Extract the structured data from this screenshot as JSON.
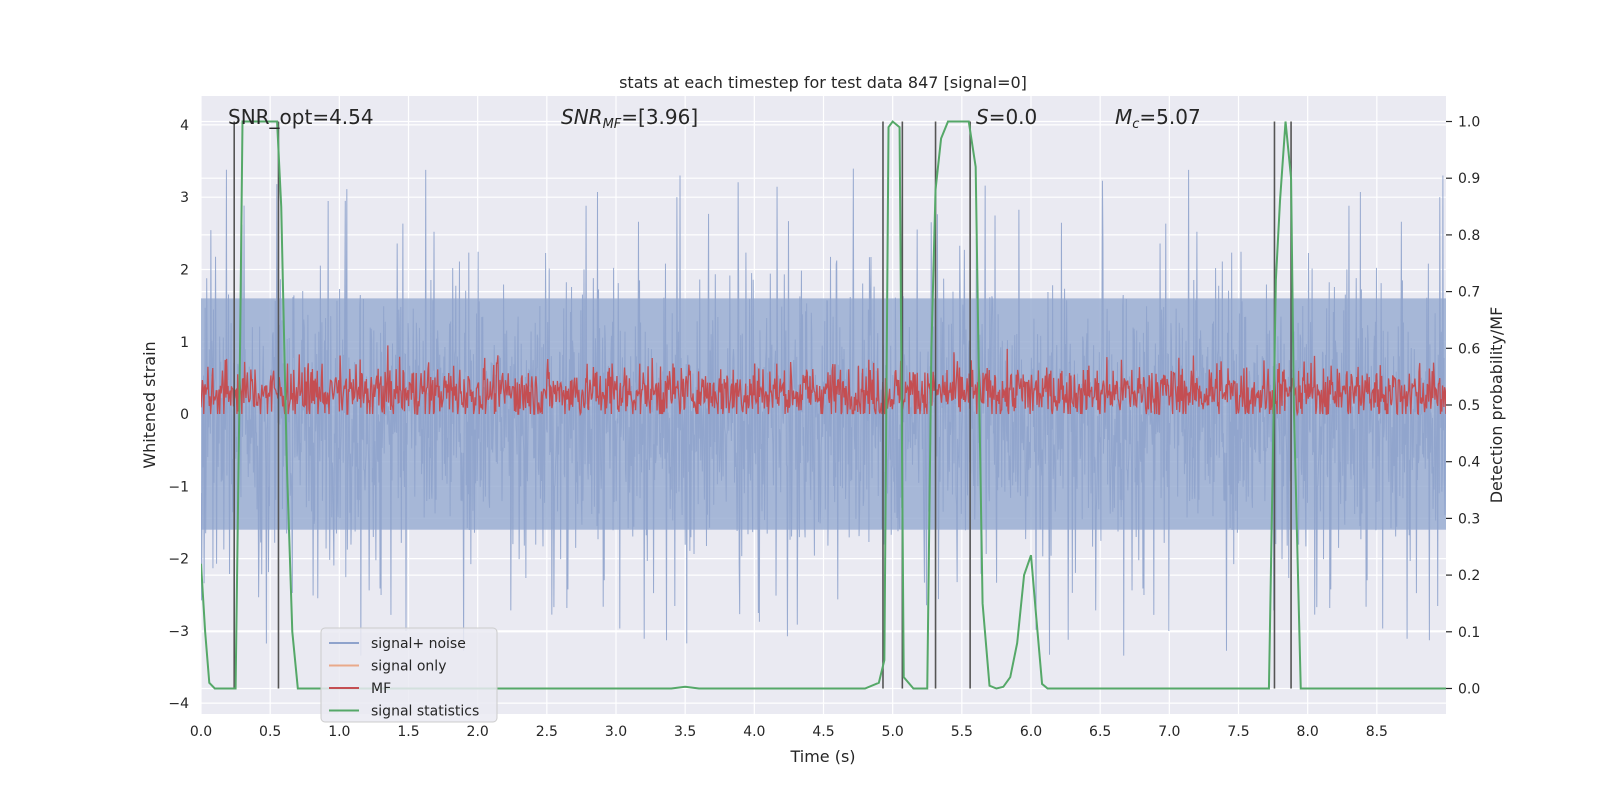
{
  "chart_data": {
    "type": "line",
    "title": "stats at each timestep for test data 847 [signal=0]",
    "xlabel": "Time (s)",
    "ylabel": "Whitened strain",
    "y2label": "Detection probability/MF",
    "xlim": [
      0.0,
      9.0
    ],
    "ylim": [
      -4.15,
      4.4
    ],
    "y2lim": [
      -0.045,
      1.045
    ],
    "xticks": [
      "0.0",
      "0.5",
      "1.0",
      "1.5",
      "2.0",
      "2.5",
      "3.0",
      "3.5",
      "4.0",
      "4.5",
      "5.0",
      "5.5",
      "6.0",
      "6.5",
      "7.0",
      "7.5",
      "8.0",
      "8.5"
    ],
    "yticks": [
      "4",
      "3",
      "2",
      "1",
      "0",
      "−1",
      "−2",
      "−3",
      "−4"
    ],
    "y2ticks": [
      "1.0",
      "0.9",
      "0.8",
      "0.7",
      "0.6",
      "0.5",
      "0.4",
      "0.3",
      "0.2",
      "0.1",
      "0.0"
    ],
    "annotations": {
      "snr_opt": "SNR_opt=4.54",
      "snr_mf_base": "SNR",
      "snr_mf_sub": "MF",
      "snr_mf_value": "=[3.96]",
      "s_sym": "S",
      "s_value": "=0.0",
      "mc_sym": "M",
      "mc_sub": "c",
      "mc_value": "=5.07"
    },
    "legend": {
      "position": "lower-left",
      "entries": [
        {
          "label": "signal+ noise",
          "color": "#8fa3cc"
        },
        {
          "label": "signal only",
          "color": "#e9a98a"
        },
        {
          "label": "MF",
          "color": "#c44e52"
        },
        {
          "label": "signal statistics",
          "color": "#55a868"
        }
      ]
    },
    "noise_envelope": {
      "description": "whitened strain, approx. Gaussian noise with std ~1.1",
      "band_upper": 1.6,
      "band_lower": -1.6,
      "spike_max": 3.4,
      "spike_min": -3.8
    },
    "mf_band": {
      "min": 0.0,
      "max": 0.95,
      "mean": 0.3
    },
    "vertical_markers_s": [
      0.24,
      0.56,
      4.93,
      5.07,
      5.31,
      5.56,
      7.76,
      7.88
    ],
    "signal_statistics": {
      "x": [
        0.0,
        0.03,
        0.06,
        0.1,
        0.15,
        0.2,
        0.25,
        0.28,
        0.3,
        0.35,
        0.4,
        0.45,
        0.5,
        0.55,
        0.58,
        0.62,
        0.66,
        0.7,
        0.8,
        1.0,
        2.0,
        3.0,
        3.4,
        3.5,
        3.6,
        4.0,
        4.5,
        4.8,
        4.9,
        4.94,
        4.97,
        5.0,
        5.05,
        5.08,
        5.15,
        5.2,
        5.25,
        5.28,
        5.31,
        5.35,
        5.4,
        5.45,
        5.5,
        5.55,
        5.6,
        5.62,
        5.65,
        5.7,
        5.75,
        5.8,
        5.85,
        5.9,
        5.95,
        6.0,
        6.04,
        6.08,
        6.12,
        6.2,
        6.5,
        7.0,
        7.5,
        7.72,
        7.77,
        7.8,
        7.84,
        7.88,
        7.9,
        7.95,
        8.0,
        8.5,
        9.0
      ],
      "y": [
        0.22,
        0.1,
        0.01,
        0.0,
        0.0,
        0.0,
        0.0,
        0.55,
        1.0,
        1.0,
        1.0,
        1.0,
        1.0,
        1.0,
        0.85,
        0.4,
        0.1,
        0.0,
        0.0,
        0.0,
        0.0,
        0.0,
        0.0,
        0.003,
        0.0,
        0.0,
        0.0,
        0.0,
        0.01,
        0.05,
        0.99,
        1.0,
        0.99,
        0.02,
        0.0,
        0.0,
        0.0,
        0.6,
        0.88,
        0.97,
        1.0,
        1.0,
        1.0,
        1.0,
        0.92,
        0.6,
        0.15,
        0.005,
        0.0,
        0.003,
        0.02,
        0.08,
        0.2,
        0.235,
        0.12,
        0.008,
        0.0,
        0.0,
        0.0,
        0.0,
        0.0,
        0.0,
        0.72,
        0.86,
        1.0,
        0.9,
        0.5,
        0.0,
        0.0,
        0.0,
        0.0
      ]
    }
  }
}
